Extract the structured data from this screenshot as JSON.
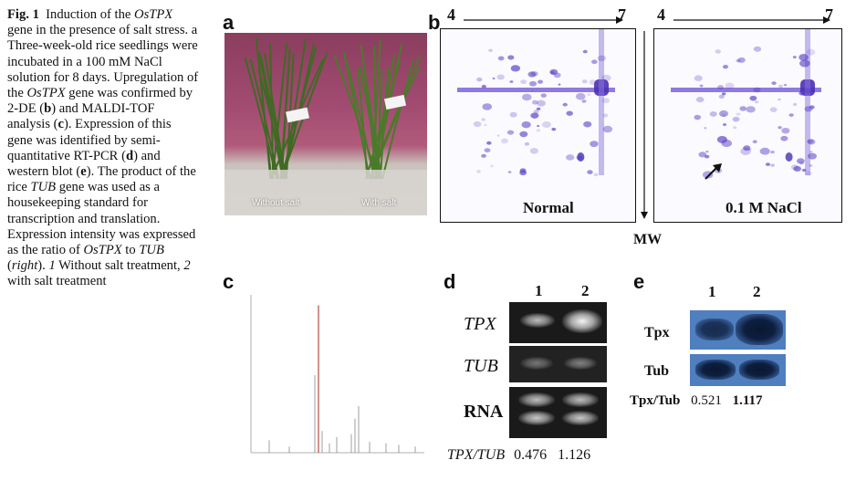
{
  "caption": {
    "fig": "Fig. 1",
    "text": [
      {
        "t": "Induction of the ",
        "s": "n"
      },
      {
        "t": "OsTPX",
        "s": "i"
      },
      {
        "t": " gene in the presence of salt stress. a Three-week-old rice seedlings were incubated in a 100 mM NaCl solution for 8 days. Upregulation of the ",
        "s": "n"
      },
      {
        "t": "OsTPX",
        "s": "i"
      },
      {
        "t": " gene was confirmed by 2-DE (",
        "s": "n"
      },
      {
        "t": "b",
        "s": "b"
      },
      {
        "t": ") and MALDI-TOF analysis (",
        "s": "n"
      },
      {
        "t": "c",
        "s": "b"
      },
      {
        "t": "). Expression of this gene was identified by semi-quantitative RT-PCR (",
        "s": "n"
      },
      {
        "t": "d",
        "s": "b"
      },
      {
        "t": ") and western blot (",
        "s": "n"
      },
      {
        "t": "e",
        "s": "b"
      },
      {
        "t": "). The product of the rice ",
        "s": "n"
      },
      {
        "t": "TUB",
        "s": "i"
      },
      {
        "t": " gene was used as a housekeeping standard for transcription and translation. Expression intensity was expressed as the ratio of ",
        "s": "n"
      },
      {
        "t": "OsTPX",
        "s": "i"
      },
      {
        "t": " to ",
        "s": "n"
      },
      {
        "t": "TUB",
        "s": "i"
      },
      {
        "t": " (",
        "s": "n"
      },
      {
        "t": "right",
        "s": "i"
      },
      {
        "t": "). ",
        "s": "n"
      },
      {
        "t": "1",
        "s": "i"
      },
      {
        "t": " Without salt treatment, ",
        "s": "n"
      },
      {
        "t": "2",
        "s": "i"
      },
      {
        "t": " with salt treatment",
        "s": "n"
      }
    ]
  },
  "panel_a": {
    "letter": "a",
    "left_label": "Without salt",
    "right_label": "With salt"
  },
  "panel_b": {
    "letter": "b",
    "ph_start": "4",
    "ph_end": "7",
    "gel_left_label": "Normal",
    "gel_right_label": "0.1 M NaCl",
    "axis_label": "MW"
  },
  "panel_c": {
    "letter": "c"
  },
  "panel_d": {
    "letter": "d",
    "lane1": "1",
    "lane2": "2",
    "rows": [
      "TPX",
      "TUB",
      "RNA"
    ],
    "ratio_label": "TPX/TUB",
    "ratio1": "0.476",
    "ratio2": "1.126"
  },
  "panel_e": {
    "letter": "e",
    "lane1": "1",
    "lane2": "2",
    "rows": [
      "Tpx",
      "Tub"
    ],
    "ratio_label": "Tpx/Tub",
    "ratio1": "0.521",
    "ratio2": "1.117"
  },
  "colors": {
    "gel_spot": "#5a3fc4",
    "western_bg": "#4f7fbf",
    "background_wall": "#a24b71"
  }
}
